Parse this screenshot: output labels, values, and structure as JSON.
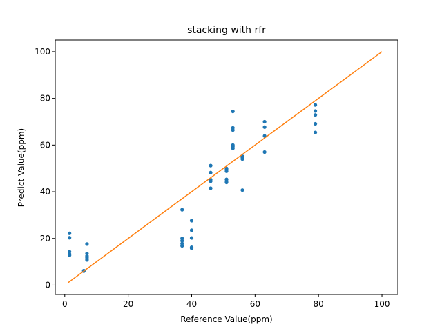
{
  "chart_data": {
    "type": "scatter",
    "title": "stacking with rfr",
    "xlabel": "Reference Value(ppm)",
    "ylabel": "Predict Value(ppm)",
    "xlim": [
      -3,
      105
    ],
    "ylim": [
      -4,
      105
    ],
    "xticks": [
      0,
      20,
      40,
      60,
      80,
      100
    ],
    "yticks": [
      0,
      20,
      40,
      60,
      80,
      100
    ],
    "grid": false,
    "series": [
      {
        "color": "#1f77b4",
        "marker": "circle",
        "points": [
          [
            1.5,
            22.2
          ],
          [
            1.5,
            20.3
          ],
          [
            1.5,
            14.3
          ],
          [
            1.5,
            13.3
          ],
          [
            1.5,
            12.8
          ],
          [
            6,
            6.2
          ],
          [
            6,
            6.0
          ],
          [
            7,
            17.6
          ],
          [
            7,
            13.5
          ],
          [
            7,
            12.5
          ],
          [
            7,
            11.8
          ],
          [
            7,
            11.2
          ],
          [
            7,
            10.8
          ],
          [
            37,
            32.3
          ],
          [
            37,
            20.0
          ],
          [
            37,
            19.0
          ],
          [
            37,
            17.8
          ],
          [
            37,
            16.8
          ],
          [
            40,
            27.6
          ],
          [
            40,
            23.5
          ],
          [
            40,
            20.2
          ],
          [
            40,
            16.2
          ],
          [
            40,
            15.8
          ],
          [
            46,
            51.2
          ],
          [
            46,
            48.2
          ],
          [
            46,
            45.2
          ],
          [
            46,
            44.5
          ],
          [
            46,
            41.5
          ],
          [
            51,
            50.0
          ],
          [
            51,
            49.5
          ],
          [
            51,
            48.8
          ],
          [
            51,
            45.3
          ],
          [
            51,
            44.5
          ],
          [
            51,
            44.0
          ],
          [
            53,
            74.4
          ],
          [
            53,
            67.4
          ],
          [
            53,
            66.4
          ],
          [
            53,
            60.0
          ],
          [
            53,
            59.3
          ],
          [
            53,
            58.6
          ],
          [
            56,
            55.2
          ],
          [
            56,
            54.6
          ],
          [
            56,
            54.0
          ],
          [
            56,
            40.7
          ],
          [
            63,
            70.0
          ],
          [
            63,
            67.7
          ],
          [
            63,
            63.9
          ],
          [
            63,
            57.0
          ],
          [
            79,
            77.2
          ],
          [
            79,
            74.6
          ],
          [
            79,
            72.9
          ],
          [
            79,
            69.1
          ],
          [
            79,
            65.4
          ]
        ]
      },
      {
        "type": "line",
        "color": "#ff7f0e",
        "x": [
          1,
          100
        ],
        "y": [
          1,
          100
        ]
      }
    ]
  }
}
